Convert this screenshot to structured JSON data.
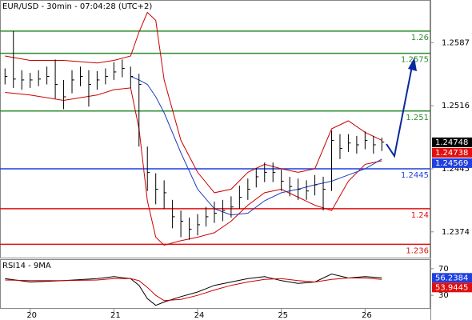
{
  "chart_data": {
    "type": "hlc",
    "title": "EUR/USD - 30min - 07:04:28 (UTC+2)",
    "x": [
      -0.3,
      -0.2,
      -0.1,
      0,
      0.1,
      0.2,
      0.3,
      0.4,
      0.5,
      0.6,
      0.7,
      0.8,
      0.9,
      1.0,
      1.1,
      1.2,
      1.3,
      1.4,
      1.5,
      1.6,
      1.7,
      1.8,
      1.9,
      2.0,
      2.1,
      2.2,
      2.3,
      2.4,
      2.5,
      2.6,
      2.7,
      2.8,
      2.9,
      3.0,
      3.1,
      3.2,
      3.3,
      3.4,
      3.5,
      3.6,
      3.7,
      3.8,
      3.9,
      4.0,
      4.1,
      4.2
    ],
    "high": [
      1.2558,
      1.26,
      1.2556,
      1.2553,
      1.2556,
      1.256,
      1.2568,
      1.2545,
      1.2556,
      1.256,
      1.2556,
      1.2555,
      1.2558,
      1.2565,
      1.2568,
      1.256,
      1.2552,
      1.247,
      1.244,
      1.2432,
      1.241,
      1.2398,
      1.239,
      1.2394,
      1.2402,
      1.2408,
      1.241,
      1.2414,
      1.2426,
      1.2434,
      1.2446,
      1.2452,
      1.2452,
      1.2444,
      1.2436,
      1.2434,
      1.2432,
      1.2438,
      1.2436,
      1.2488,
      1.2484,
      1.2484,
      1.2482,
      1.2487,
      1.2482,
      1.248
    ],
    "low": [
      1.254,
      1.2536,
      1.2534,
      1.2536,
      1.2538,
      1.254,
      1.2524,
      1.2512,
      1.253,
      1.2538,
      1.2515,
      1.2534,
      1.254,
      1.2545,
      1.2548,
      1.2536,
      1.247,
      1.242,
      1.2405,
      1.24,
      1.2378,
      1.2368,
      1.2365,
      1.237,
      1.238,
      1.2384,
      1.2386,
      1.239,
      1.24,
      1.241,
      1.2424,
      1.243,
      1.243,
      1.242,
      1.2414,
      1.241,
      1.241,
      1.2415,
      1.2398,
      1.242,
      1.2456,
      1.2464,
      1.2462,
      1.2467,
      1.2462,
      1.2465
    ],
    "close": [
      1.2549,
      1.2546,
      1.2545,
      1.2545,
      1.2546,
      1.2549,
      1.254,
      1.2526,
      1.2545,
      1.2549,
      1.254,
      1.2545,
      1.2549,
      1.2554,
      1.2558,
      1.2549,
      1.254,
      1.2441,
      1.2422,
      1.2418,
      1.2391,
      1.2386,
      1.2377,
      1.2382,
      1.2391,
      1.2395,
      1.2398,
      1.2402,
      1.2413,
      1.2422,
      1.2436,
      1.2441,
      1.2441,
      1.2431,
      1.2425,
      1.2422,
      1.242,
      1.2427,
      1.2422,
      1.2477,
      1.2468,
      1.2474,
      1.2472,
      1.2477,
      1.2472,
      1.2475
    ],
    "bar_color": "#000000",
    "overlay_x": [
      -0.3,
      0,
      0.4,
      0.8,
      1.0,
      1.2,
      1.3,
      1.4,
      1.5,
      1.6,
      1.8,
      2.0,
      2.2,
      2.4,
      2.6,
      2.8,
      3.0,
      3.2,
      3.4,
      3.6,
      3.8,
      4.0,
      4.2
    ],
    "overlays": [
      {
        "color": "#cc0000",
        "values": [
          1.2572,
          1.2567,
          1.2567,
          1.2564,
          1.2567,
          1.2572,
          1.2599,
          1.2621,
          1.2612,
          1.2545,
          1.2477,
          1.2441,
          1.2418,
          1.2422,
          1.2441,
          1.245,
          1.2445,
          1.2441,
          1.2445,
          1.249,
          1.2499,
          1.2486,
          1.2477
        ]
      },
      {
        "color": "#cc0000",
        "values": [
          1.2531,
          1.2528,
          1.2522,
          1.2528,
          1.2534,
          1.2536,
          1.249,
          1.2409,
          1.2368,
          1.2359,
          1.2364,
          1.2368,
          1.2373,
          1.2386,
          1.2404,
          1.2418,
          1.2422,
          1.2413,
          1.2404,
          1.2398,
          1.2431,
          1.245,
          1.2454
        ]
      },
      {
        "color": "#1f3fbf",
        "values": [
          null,
          null,
          null,
          null,
          null,
          1.2549,
          1.2545,
          1.254,
          1.2526,
          1.2508,
          1.2463,
          1.2422,
          1.24,
          1.2393,
          1.2395,
          1.2409,
          1.2418,
          1.2422,
          1.2427,
          1.2431,
          1.2438,
          1.2445,
          1.2456
        ]
      }
    ],
    "levels": [
      {
        "value": 1.26,
        "color": "#2e8b2e"
      },
      {
        "value": 1.2575,
        "color": "#2e8b2e"
      },
      {
        "value": 1.251,
        "color": "#2e8b2e"
      },
      {
        "value": 1.2445,
        "color": "#1f3fdf"
      },
      {
        "value": 1.24,
        "color": "#e01010"
      },
      {
        "value": 1.236,
        "color": "#e01010"
      }
    ],
    "price_labels": [
      {
        "value": 1.24748,
        "color": "#000000"
      },
      {
        "value": 1.24738,
        "color": "#e01010"
      },
      {
        "value": 1.24569,
        "color": "#1f3fdf"
      }
    ],
    "xlim": [
      -0.36,
      4.78
    ],
    "xticks": [
      {
        "value": 0,
        "label": "20"
      },
      {
        "value": 1,
        "label": "21"
      },
      {
        "value": 2,
        "label": "24"
      },
      {
        "value": 3,
        "label": "25"
      },
      {
        "value": 4,
        "label": "26"
      }
    ],
    "ylim": [
      1.2345,
      1.2635
    ],
    "yticks": [
      1.2587,
      1.2516,
      1.2445,
      1.2374
    ],
    "rsi": {
      "title": "RSI14 - 9MA",
      "ylim": [
        11,
        83
      ],
      "yticks": [
        70,
        30
      ],
      "series": [
        {
          "color": "#000000",
          "values": [
            55,
            50,
            52,
            55,
            58,
            55,
            45,
            25,
            15,
            20,
            28,
            35,
            45,
            50,
            55,
            58,
            52,
            48,
            50,
            62,
            56,
            58,
            56.2384
          ]
        },
        {
          "color": "#cc0000",
          "values": [
            53,
            52,
            52,
            53,
            55,
            55,
            52,
            42,
            30,
            22,
            24,
            30,
            38,
            45,
            50,
            54,
            55,
            52,
            50,
            54,
            56,
            56,
            53.9445
          ]
        }
      ],
      "labels": [
        {
          "value": 56.2384,
          "color": "#1f3fdf"
        },
        {
          "value": 53.9445,
          "color": "#e01010"
        }
      ]
    }
  }
}
